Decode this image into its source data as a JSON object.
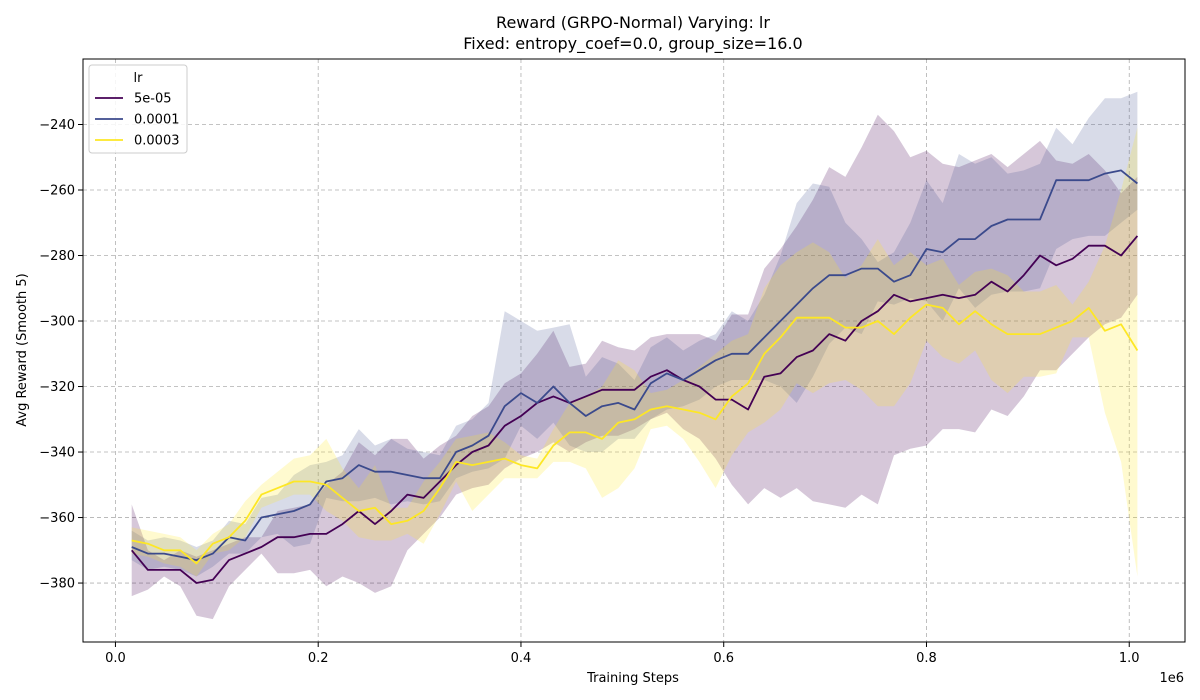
{
  "chart_data": {
    "type": "line",
    "title": "Reward (GRPO-Normal) Varying: lr",
    "subtitle": "Fixed: entropy_coef=0.0, group_size=16.0",
    "xlabel": "Training Steps",
    "ylabel": "Avg Reward (Smooth 5)",
    "x_offset_label": "1e6",
    "xlim": [
      -0.032,
      1.055
    ],
    "ylim": [
      -398,
      -220
    ],
    "x_ticks": [
      0.0,
      0.2,
      0.4,
      0.6,
      0.8,
      1.0
    ],
    "x_tick_labels": [
      "0.0",
      "0.2",
      "0.4",
      "0.6",
      "0.8",
      "1.0"
    ],
    "y_ticks": [
      -380,
      -360,
      -340,
      -320,
      -300,
      -280,
      -260,
      -240
    ],
    "y_tick_labels": [
      "−380",
      "−360",
      "−340",
      "−320",
      "−300",
      "−280",
      "−260",
      "−240"
    ],
    "grid": true,
    "legend": {
      "title": "lr",
      "position": "top-left"
    },
    "x": [
      0.016,
      0.032,
      0.048,
      0.064,
      0.08,
      0.096,
      0.112,
      0.128,
      0.144,
      0.16,
      0.176,
      0.192,
      0.208,
      0.224,
      0.24,
      0.256,
      0.272,
      0.288,
      0.304,
      0.32,
      0.336,
      0.352,
      0.368,
      0.384,
      0.4,
      0.416,
      0.432,
      0.448,
      0.464,
      0.48,
      0.496,
      0.512,
      0.528,
      0.544,
      0.56,
      0.576,
      0.592,
      0.608,
      0.624,
      0.64,
      0.656,
      0.672,
      0.688,
      0.704,
      0.72,
      0.736,
      0.752,
      0.768,
      0.784,
      0.8,
      0.816,
      0.832,
      0.848,
      0.864,
      0.88,
      0.896,
      0.912,
      0.928,
      0.944,
      0.96,
      0.976,
      0.992,
      1.008
    ],
    "series": [
      {
        "name": "5e-05",
        "color": "#440154",
        "values": [
          -370,
          -376,
          -376,
          -376,
          -380,
          -379,
          -373,
          -371,
          -369,
          -366,
          -366,
          -365,
          -365,
          -362,
          -358,
          -362,
          -358,
          -353,
          -354,
          -349,
          -344,
          -340,
          -338,
          -332,
          -329,
          -325,
          -323,
          -325,
          -323,
          -321,
          -321,
          -321,
          -317,
          -315,
          -318,
          -320,
          -324,
          -324,
          -327,
          -317,
          -316,
          -311,
          -309,
          -304,
          -306,
          -300,
          -297,
          -292,
          -294,
          -293,
          -292,
          -293,
          -292,
          -288,
          -291,
          -286,
          -280,
          -283,
          -281,
          -277,
          -277,
          -280,
          -274
        ],
        "lower": [
          -384,
          -382,
          -378,
          -381,
          -390,
          -391,
          -381,
          -376,
          -371,
          -377,
          -377,
          -376,
          -381,
          -378,
          -380,
          -383,
          -381,
          -370,
          -365,
          -360,
          -353,
          -351,
          -350,
          -345,
          -342,
          -340,
          -337,
          -340,
          -337,
          -335,
          -335,
          -333,
          -330,
          -328,
          -333,
          -336,
          -342,
          -350,
          -356,
          -351,
          -354,
          -351,
          -355,
          -356,
          -357,
          -353,
          -356,
          -341,
          -339,
          -338,
          -333,
          -333,
          -334,
          -327,
          -329,
          -323,
          -315,
          -315,
          -310,
          -305,
          -301,
          -299,
          -292
        ],
        "upper": [
          -356,
          -370,
          -373,
          -370,
          -372,
          -370,
          -368,
          -366,
          -366,
          -358,
          -357,
          -356,
          -350,
          -346,
          -337,
          -341,
          -336,
          -336,
          -342,
          -338,
          -335,
          -329,
          -326,
          -319,
          -316,
          -310,
          -303,
          -314,
          -313,
          -306,
          -308,
          -309,
          -305,
          -304,
          -304,
          -304,
          -306,
          -298,
          -298,
          -284,
          -278,
          -271,
          -263,
          -253,
          -256,
          -247,
          -237,
          -242,
          -250,
          -248,
          -252,
          -253,
          -251,
          -249,
          -253,
          -249,
          -245,
          -251,
          -252,
          -249,
          -254,
          -261,
          -256
        ]
      },
      {
        "name": "0.0001",
        "color": "#3b4a8c",
        "values": [
          -369,
          -371,
          -371,
          -372,
          -373,
          -371,
          -366,
          -367,
          -360,
          -359,
          -358,
          -356,
          -349,
          -348,
          -344,
          -346,
          -346,
          -347,
          -348,
          -348,
          -340,
          -338,
          -335,
          -326,
          -322,
          -325,
          -320,
          -325,
          -329,
          -326,
          -325,
          -327,
          -319,
          -316,
          -318,
          -315,
          -312,
          -310,
          -310,
          -305,
          -300,
          -295,
          -290,
          -286,
          -286,
          -284,
          -284,
          -288,
          -286,
          -278,
          -279,
          -275,
          -275,
          -271,
          -269,
          -269,
          -269,
          -257,
          -257,
          -257,
          -255,
          -254,
          -258
        ],
        "lower": [
          -373,
          -376,
          -375,
          -376,
          -378,
          -375,
          -371,
          -371,
          -366,
          -365,
          -369,
          -368,
          -354,
          -355,
          -355,
          -354,
          -356,
          -355,
          -356,
          -355,
          -348,
          -346,
          -345,
          -342,
          -332,
          -336,
          -331,
          -338,
          -340,
          -340,
          -336,
          -336,
          -330,
          -327,
          -326,
          -324,
          -320,
          -318,
          -318,
          -318,
          -320,
          -325,
          -317,
          -307,
          -302,
          -304,
          -294,
          -295,
          -293,
          -294,
          -300,
          -290,
          -296,
          -292,
          -291,
          -291,
          -290,
          -278,
          -275,
          -274,
          -274,
          -270,
          -266
        ],
        "upper": [
          -364,
          -367,
          -366,
          -367,
          -369,
          -367,
          -361,
          -362,
          -354,
          -353,
          -347,
          -344,
          -343,
          -341,
          -333,
          -338,
          -336,
          -339,
          -340,
          -341,
          -332,
          -330,
          -325,
          -297,
          -300,
          -303,
          -302,
          -301,
          -317,
          -311,
          -313,
          -318,
          -308,
          -305,
          -309,
          -306,
          -304,
          -297,
          -300,
          -292,
          -280,
          -264,
          -258,
          -259,
          -270,
          -275,
          -282,
          -279,
          -270,
          -257,
          -264,
          -249,
          -252,
          -250,
          -255,
          -254,
          -252,
          -241,
          -246,
          -238,
          -232,
          -232,
          -230
        ]
      },
      {
        "name": "0.0003",
        "color": "#fde725",
        "values": [
          -367,
          -368,
          -370,
          -370,
          -374,
          -368,
          -366,
          -361,
          -353,
          -351,
          -349,
          -349,
          -350,
          -354,
          -358,
          -357,
          -362,
          -361,
          -358,
          -351,
          -343,
          -344,
          -343,
          -342,
          -344,
          -345,
          -338,
          -334,
          -334,
          -336,
          -331,
          -330,
          -327,
          -326,
          -327,
          -328,
          -330,
          -323,
          -319,
          -310,
          -305,
          -299,
          -299,
          -299,
          -302,
          -302,
          -300,
          -304,
          -299,
          -295,
          -296,
          -301,
          -297,
          -301,
          -304,
          -304,
          -304,
          -302,
          -300,
          -296,
          -303,
          -301,
          -309
        ],
        "lower": [
          -371,
          -372,
          -374,
          -375,
          -378,
          -371,
          -370,
          -366,
          -357,
          -355,
          -353,
          -353,
          -358,
          -361,
          -366,
          -367,
          -367,
          -365,
          -368,
          -359,
          -349,
          -358,
          -353,
          -348,
          -348,
          -348,
          -343,
          -343,
          -345,
          -354,
          -351,
          -345,
          -333,
          -332,
          -336,
          -343,
          -351,
          -341,
          -334,
          -331,
          -327,
          -319,
          -322,
          -319,
          -318,
          -321,
          -326,
          -326,
          -319,
          -306,
          -311,
          -313,
          -309,
          -318,
          -322,
          -317,
          -317,
          -316,
          -305,
          -305,
          -328,
          -343,
          -378
        ],
        "upper": [
          -363,
          -364,
          -365,
          -366,
          -370,
          -365,
          -362,
          -355,
          -350,
          -346,
          -342,
          -341,
          -336,
          -345,
          -351,
          -344,
          -357,
          -357,
          -349,
          -343,
          -336,
          -335,
          -334,
          -337,
          -341,
          -342,
          -333,
          -325,
          -323,
          -320,
          -312,
          -315,
          -322,
          -321,
          -318,
          -314,
          -310,
          -306,
          -304,
          -290,
          -283,
          -279,
          -276,
          -279,
          -287,
          -283,
          -275,
          -283,
          -279,
          -283,
          -281,
          -289,
          -285,
          -284,
          -286,
          -291,
          -291,
          -289,
          -295,
          -288,
          -277,
          -260,
          -241
        ]
      }
    ]
  }
}
